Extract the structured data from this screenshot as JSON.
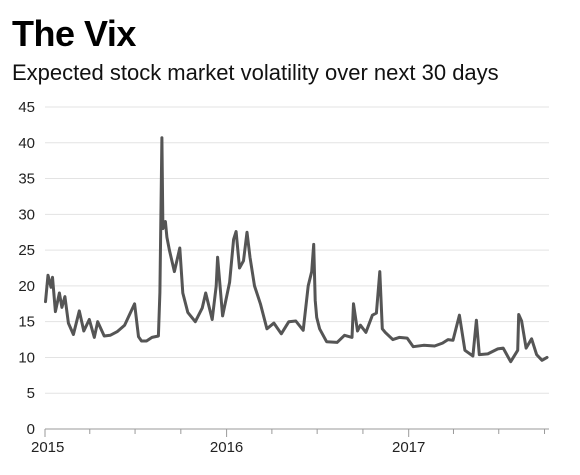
{
  "header": {
    "title": "The Vix",
    "subtitle": "Expected stock market volatility over next 30 days"
  },
  "chart_data": {
    "type": "line",
    "title": "The Vix",
    "subtitle": "Expected stock market volatility over next 30 days",
    "xlabel": "",
    "ylabel": "",
    "ylim": [
      0,
      45
    ],
    "yticks": [
      0,
      5,
      10,
      15,
      20,
      25,
      30,
      35,
      40,
      45
    ],
    "xlim": [
      "2015-01-01",
      "2017-10-10"
    ],
    "xticks": [
      {
        "date": "2015-01-01",
        "label": "2015"
      },
      {
        "date": "2016-01-01",
        "label": "2016"
      },
      {
        "date": "2017-01-01",
        "label": "2017"
      }
    ],
    "grid": "horizontal",
    "line_color": "#555555",
    "series": [
      {
        "x": [
          "2015-01-02",
          "2015-01-07",
          "2015-01-13",
          "2015-01-16",
          "2015-01-22",
          "2015-01-30",
          "2015-02-04",
          "2015-02-10",
          "2015-02-17",
          "2015-02-27",
          "2015-03-11",
          "2015-03-20",
          "2015-03-31",
          "2015-04-10",
          "2015-04-17",
          "2015-04-30",
          "2015-05-12",
          "2015-05-26",
          "2015-06-10",
          "2015-06-30",
          "2015-07-08",
          "2015-07-14",
          "2015-07-24",
          "2015-08-04",
          "2015-08-17",
          "2015-08-20",
          "2015-08-24",
          "2015-08-26",
          "2015-08-31",
          "2015-09-03",
          "2015-09-08",
          "2015-09-18",
          "2015-09-29",
          "2015-10-05",
          "2015-10-15",
          "2015-10-30",
          "2015-11-13",
          "2015-11-20",
          "2015-12-03",
          "2015-12-11",
          "2015-12-14",
          "2015-12-24",
          "2016-01-07",
          "2016-01-15",
          "2016-01-20",
          "2016-01-27",
          "2016-02-04",
          "2016-02-11",
          "2016-02-17",
          "2016-02-26",
          "2016-03-09",
          "2016-03-22",
          "2016-04-05",
          "2016-04-20",
          "2016-05-05",
          "2016-05-19",
          "2016-06-03",
          "2016-06-13",
          "2016-06-20",
          "2016-06-24",
          "2016-06-27",
          "2016-06-30",
          "2016-07-06",
          "2016-07-20",
          "2016-08-10",
          "2016-08-25",
          "2016-09-09",
          "2016-09-12",
          "2016-09-20",
          "2016-09-26",
          "2016-10-07",
          "2016-10-20",
          "2016-10-28",
          "2016-11-04",
          "2016-11-09",
          "2016-11-15",
          "2016-11-30",
          "2016-12-13",
          "2016-12-29",
          "2017-01-10",
          "2017-01-31",
          "2017-02-22",
          "2017-03-10",
          "2017-03-21",
          "2017-03-31",
          "2017-04-13",
          "2017-04-24",
          "2017-05-10",
          "2017-05-17",
          "2017-05-23",
          "2017-06-09",
          "2017-06-29",
          "2017-07-10",
          "2017-07-25",
          "2017-08-08",
          "2017-08-10",
          "2017-08-16",
          "2017-08-25",
          "2017-09-05",
          "2017-09-15",
          "2017-09-26",
          "2017-10-06"
        ],
        "y": [
          17.8,
          21.5,
          19.8,
          21.2,
          16.4,
          19.0,
          17.0,
          18.5,
          14.8,
          13.2,
          16.5,
          13.7,
          15.3,
          12.8,
          15.0,
          13.0,
          13.1,
          13.6,
          14.5,
          17.5,
          12.9,
          12.3,
          12.3,
          12.8,
          13.0,
          19.1,
          40.7,
          28.0,
          29.0,
          26.8,
          25.0,
          22.0,
          25.3,
          19.0,
          16.3,
          15.0,
          16.9,
          19.0,
          15.3,
          20.0,
          24.0,
          15.8,
          20.5,
          26.5,
          27.6,
          22.5,
          23.5,
          27.5,
          24.0,
          20.0,
          17.5,
          14.0,
          14.8,
          13.3,
          15.0,
          15.1,
          13.8,
          20.0,
          22.0,
          25.8,
          18.0,
          15.6,
          14.0,
          12.2,
          12.1,
          13.1,
          12.8,
          17.5,
          13.7,
          14.5,
          13.5,
          15.9,
          16.2,
          22.0,
          14.0,
          13.5,
          12.5,
          12.8,
          12.7,
          11.5,
          11.7,
          11.6,
          12.0,
          12.5,
          12.4,
          15.9,
          11.0,
          10.2,
          15.2,
          10.4,
          10.5,
          11.2,
          11.3,
          9.4,
          11.0,
          16.0,
          15.1,
          11.3,
          12.6,
          10.4,
          9.6,
          10.0
        ]
      }
    ]
  }
}
